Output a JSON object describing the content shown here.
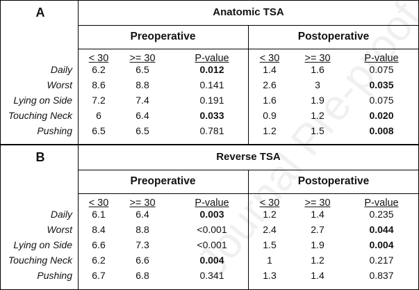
{
  "watermark": "Journal Pre-proof",
  "columns": [
    "< 30",
    ">= 30",
    "P-value",
    "< 30",
    ">= 30",
    "P-value"
  ],
  "groups": [
    "Preoperative",
    "Postoperative"
  ],
  "panels": [
    {
      "label": "A",
      "title": "Anatomic TSA",
      "rows": [
        {
          "label": "Daily",
          "cells": [
            {
              "v": "6.2",
              "bold": false
            },
            {
              "v": "6.5",
              "bold": false
            },
            {
              "v": "0.012",
              "bold": true
            },
            {
              "v": "1.4",
              "bold": false
            },
            {
              "v": "1.6",
              "bold": false
            },
            {
              "v": "0.075",
              "bold": false
            }
          ]
        },
        {
          "label": "Worst",
          "cells": [
            {
              "v": "8.6",
              "bold": false
            },
            {
              "v": "8.8",
              "bold": false
            },
            {
              "v": "0.141",
              "bold": false
            },
            {
              "v": "2.6",
              "bold": false
            },
            {
              "v": "3",
              "bold": false
            },
            {
              "v": "0.035",
              "bold": true
            }
          ]
        },
        {
          "label": "Lying on Side",
          "cells": [
            {
              "v": "7.2",
              "bold": false
            },
            {
              "v": "7.4",
              "bold": false
            },
            {
              "v": "0.191",
              "bold": false
            },
            {
              "v": "1.6",
              "bold": false
            },
            {
              "v": "1.9",
              "bold": false
            },
            {
              "v": "0.075",
              "bold": false
            }
          ]
        },
        {
          "label": "Touching Neck",
          "cells": [
            {
              "v": "6",
              "bold": false
            },
            {
              "v": "6.4",
              "bold": false
            },
            {
              "v": "0.033",
              "bold": true
            },
            {
              "v": "0.9",
              "bold": false
            },
            {
              "v": "1.2",
              "bold": false
            },
            {
              "v": "0.020",
              "bold": true
            }
          ]
        },
        {
          "label": "Pushing",
          "cells": [
            {
              "v": "6.5",
              "bold": false
            },
            {
              "v": "6.5",
              "bold": false
            },
            {
              "v": "0.781",
              "bold": false
            },
            {
              "v": "1.2",
              "bold": false
            },
            {
              "v": "1.5",
              "bold": false
            },
            {
              "v": "0.008",
              "bold": true
            }
          ]
        }
      ]
    },
    {
      "label": "B",
      "title": "Reverse TSA",
      "rows": [
        {
          "label": "Daily",
          "cells": [
            {
              "v": "6.1",
              "bold": false
            },
            {
              "v": "6.4",
              "bold": false
            },
            {
              "v": "0.003",
              "bold": true
            },
            {
              "v": "1.2",
              "bold": false
            },
            {
              "v": "1.4",
              "bold": false
            },
            {
              "v": "0.235",
              "bold": false
            }
          ]
        },
        {
          "label": "Worst",
          "cells": [
            {
              "v": "8.4",
              "bold": false
            },
            {
              "v": "8.8",
              "bold": false
            },
            {
              "v": "<0.001",
              "bold": false
            },
            {
              "v": "2.4",
              "bold": false
            },
            {
              "v": "2.7",
              "bold": false
            },
            {
              "v": "0.044",
              "bold": true
            }
          ]
        },
        {
          "label": "Lying on Side",
          "cells": [
            {
              "v": "6.6",
              "bold": false
            },
            {
              "v": "7.3",
              "bold": false
            },
            {
              "v": "<0.001",
              "bold": false
            },
            {
              "v": "1.5",
              "bold": false
            },
            {
              "v": "1.9",
              "bold": false
            },
            {
              "v": "0.004",
              "bold": true
            }
          ]
        },
        {
          "label": "Touching Neck",
          "cells": [
            {
              "v": "6.2",
              "bold": false
            },
            {
              "v": "6.6",
              "bold": false
            },
            {
              "v": "0.004",
              "bold": true
            },
            {
              "v": "1",
              "bold": false
            },
            {
              "v": "1.2",
              "bold": false
            },
            {
              "v": "0.217",
              "bold": false
            }
          ]
        },
        {
          "label": "Pushing",
          "cells": [
            {
              "v": "6.7",
              "bold": false
            },
            {
              "v": "6.8",
              "bold": false
            },
            {
              "v": "0.341",
              "bold": false
            },
            {
              "v": "1.3",
              "bold": false
            },
            {
              "v": "1.4",
              "bold": false
            },
            {
              "v": "0.837",
              "bold": false
            }
          ]
        }
      ]
    }
  ]
}
